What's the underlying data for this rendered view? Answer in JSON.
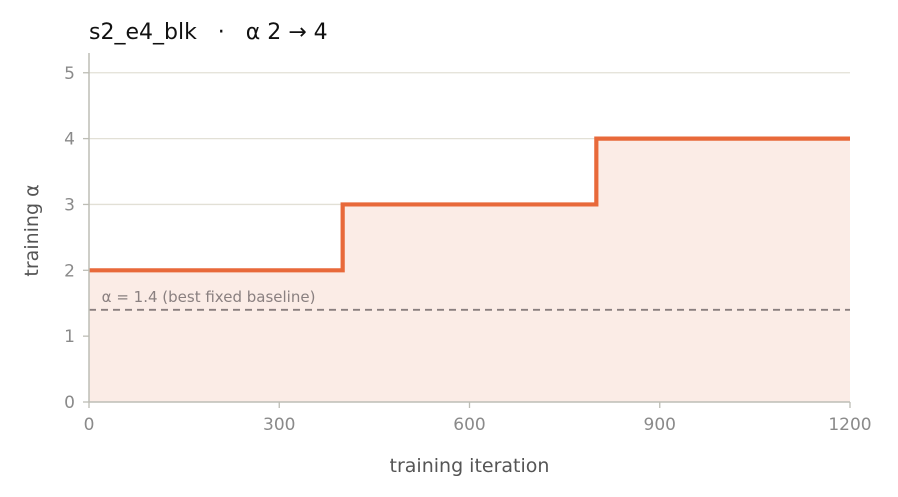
{
  "chart_data": {
    "type": "line",
    "title": "s2_e4_blk   ·   α 2 → 4",
    "xlabel": "training iteration",
    "ylabel": "training α",
    "xlim": [
      0,
      1200
    ],
    "ylim": [
      0,
      5.3
    ],
    "xticks": [
      0,
      300,
      600,
      900,
      1200
    ],
    "yticks": [
      0,
      1,
      2,
      3,
      4,
      5
    ],
    "grid": "horizontal",
    "series": [
      {
        "step": "post",
        "x": [
          0,
          400,
          800,
          1200
        ],
        "values": [
          2,
          3,
          4,
          4
        ],
        "color": "#e8693a",
        "fill": "#fbece6"
      }
    ],
    "annotations": [
      {
        "type": "hline",
        "y": 1.4,
        "style": "dashed",
        "color": "#8a7f7f",
        "text": "α = 1.4 (best fixed baseline)"
      }
    ]
  }
}
